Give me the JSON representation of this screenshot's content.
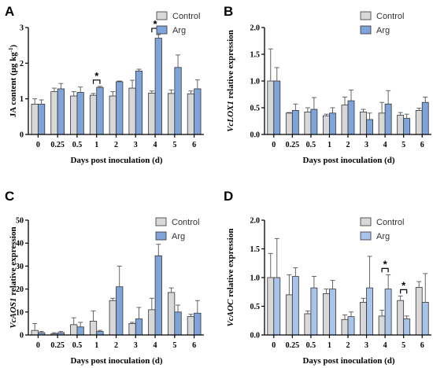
{
  "colors": {
    "control": "#d8d8d8",
    "arg": "#7fa4d9",
    "arg_light": "#a8c4ea",
    "axis": "#000000",
    "error": "#555555"
  },
  "chart_data": [
    {
      "panel": "A",
      "type": "bar",
      "ylabel_prefix": "JA content (μg kg",
      "ylabel_sup": "-1",
      "ylabel_suffix": ")",
      "xlabel": "Days post inoculation (d)",
      "categories": [
        "0",
        "0.25",
        "0.5",
        "1",
        "2",
        "3",
        "4",
        "5",
        "6"
      ],
      "ylim": [
        0,
        3
      ],
      "yticks": [
        "0",
        "1",
        "2",
        "3"
      ],
      "legend": "top-right",
      "series": [
        {
          "name": "Control",
          "values": [
            0.85,
            1.2,
            1.08,
            1.1,
            1.08,
            1.3,
            1.16,
            1.15,
            1.14
          ],
          "errors": [
            0.15,
            0.1,
            0.12,
            0.05,
            0.12,
            0.22,
            0.06,
            0.1,
            0.08
          ]
        },
        {
          "name": "Arg",
          "values": [
            0.85,
            1.28,
            1.18,
            1.32,
            1.48,
            1.78,
            2.7,
            1.88,
            1.28
          ],
          "errors": [
            0.12,
            0.15,
            0.15,
            0.03,
            0.02,
            0.05,
            0.1,
            0.35,
            0.25
          ]
        }
      ],
      "annotations": [
        {
          "category": "1",
          "text": "*"
        },
        {
          "category": "4",
          "text": "*"
        }
      ]
    },
    {
      "panel": "B",
      "type": "bar",
      "ylabel_gene": "VcLOX1",
      "ylabel_rest": " relative expression",
      "xlabel": "Days post inoculation (d)",
      "categories": [
        "0",
        "0.25",
        "0.5",
        "1",
        "2",
        "3",
        "4",
        "5",
        "6"
      ],
      "ylim": [
        0,
        2
      ],
      "yticks": [
        "0.0",
        "0.5",
        "1.0",
        "1.5",
        "2.0"
      ],
      "legend": "top-right",
      "series": [
        {
          "name": "Control",
          "values": [
            1.0,
            0.4,
            0.42,
            0.35,
            0.55,
            0.42,
            0.4,
            0.36,
            0.45
          ],
          "errors": [
            0.6,
            0.01,
            0.08,
            0.03,
            0.15,
            0.05,
            0.2,
            0.05,
            0.04
          ]
        },
        {
          "name": "Arg",
          "values": [
            1.0,
            0.45,
            0.47,
            0.4,
            0.63,
            0.28,
            0.57,
            0.3,
            0.6
          ],
          "errors": [
            0.25,
            0.12,
            0.22,
            0.1,
            0.2,
            0.12,
            0.25,
            0.08,
            0.1
          ]
        }
      ],
      "annotations": []
    },
    {
      "panel": "C",
      "type": "bar",
      "ylabel_gene": "VcAOS1",
      "ylabel_rest": " relative expression",
      "xlabel": "Days post inoculation (d)",
      "categories": [
        "0",
        "0.25",
        "0.5",
        "1",
        "2",
        "3",
        "4",
        "5",
        "6"
      ],
      "ylim": [
        0,
        50
      ],
      "yticks": [
        "0",
        "10",
        "20",
        "30",
        "40",
        "50"
      ],
      "legend": "top-right",
      "series": [
        {
          "name": "Control",
          "values": [
            2.0,
            0.5,
            4.5,
            6.0,
            15.0,
            5.0,
            11.0,
            18.5,
            8.0
          ],
          "errors": [
            3.0,
            0.5,
            3.0,
            4.5,
            1.0,
            0.5,
            5.0,
            2.0,
            1.0
          ]
        },
        {
          "name": "Arg",
          "values": [
            1.0,
            1.0,
            3.5,
            1.5,
            21.0,
            7.0,
            34.5,
            10.0,
            9.5
          ],
          "errors": [
            0.5,
            0.5,
            2.0,
            0.5,
            9.0,
            5.0,
            5.0,
            3.0,
            5.5
          ]
        }
      ],
      "annotations": []
    },
    {
      "panel": "D",
      "type": "bar",
      "ylabel_gene": "VcAOC",
      "ylabel_rest": " relative expression",
      "xlabel": "Days post inoculation (d)",
      "categories": [
        "0",
        "0.25",
        "0.5",
        "1",
        "2",
        "3",
        "4",
        "5",
        "6"
      ],
      "ylim": [
        0,
        2
      ],
      "yticks": [
        "0.0",
        "0.5",
        "1.0",
        "1.5",
        "2.0"
      ],
      "legend": "top-right",
      "series": [
        {
          "name": "Control",
          "values": [
            1.0,
            0.7,
            0.37,
            0.72,
            0.27,
            0.57,
            0.33,
            0.6,
            0.83
          ],
          "errors": [
            0.42,
            0.35,
            0.05,
            0.08,
            0.08,
            0.07,
            0.1,
            0.08,
            0.1
          ]
        },
        {
          "name": "Arg",
          "values": [
            1.0,
            1.02,
            0.82,
            0.8,
            0.32,
            0.82,
            0.8,
            0.28,
            0.57
          ],
          "errors": [
            0.68,
            0.15,
            0.2,
            0.15,
            0.08,
            0.55,
            0.25,
            0.05,
            0.5
          ]
        }
      ],
      "annotations": [
        {
          "category": "4",
          "text": "*"
        },
        {
          "category": "5",
          "text": "*"
        }
      ]
    }
  ]
}
